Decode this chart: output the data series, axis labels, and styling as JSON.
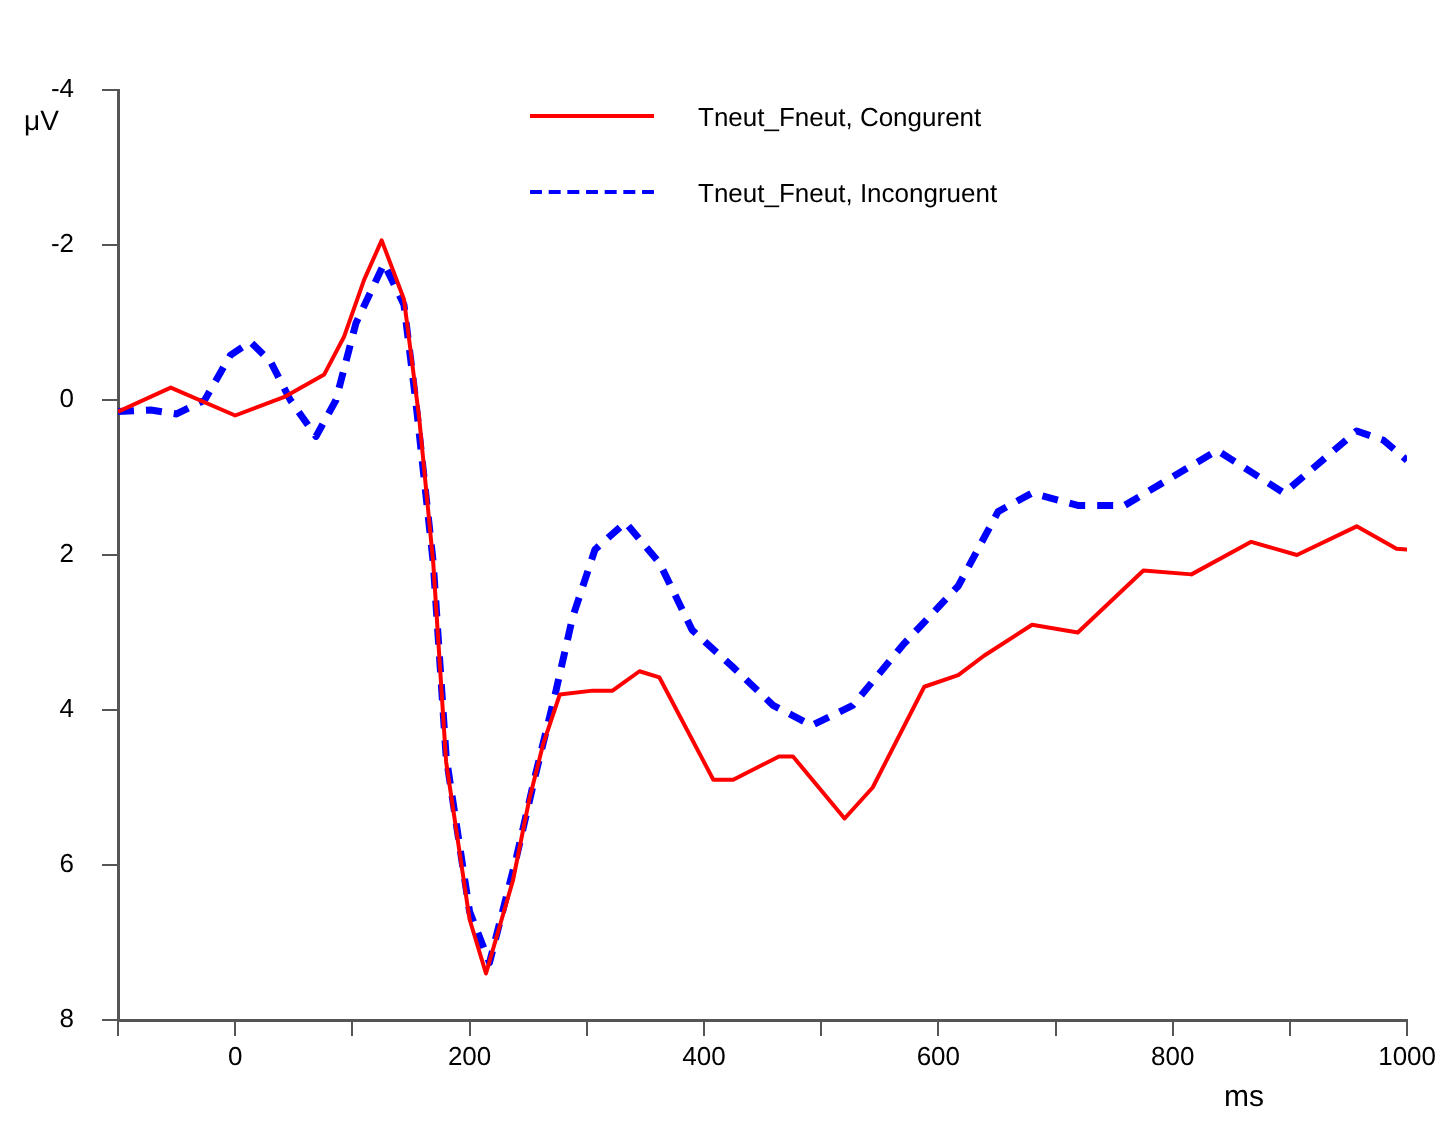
{
  "chart_data": {
    "type": "line",
    "xlabel": "ms",
    "ylabel": "μV",
    "xlim": [
      -100,
      1000
    ],
    "xticks": [
      {
        "value": -100,
        "label": null
      },
      0,
      {
        "value": 100,
        "label": null
      },
      200,
      {
        "value": 300,
        "label": null
      },
      400,
      {
        "value": 500,
        "label": null
      },
      600,
      {
        "value": 700,
        "label": null
      },
      800,
      {
        "value": 900,
        "label": null
      },
      1000
    ],
    "ylim": [
      8,
      -4
    ],
    "yticks": [
      -4,
      -2,
      0,
      2,
      4,
      6,
      8
    ],
    "grid": false,
    "legend": "top",
    "series": [
      {
        "name": "Tneut_Fneut, Congurent",
        "color": "#ff0000",
        "line_style": "solid",
        "x": [
          -100,
          -55,
          0,
          42,
          76,
          93,
          110,
          125,
          144,
          157,
          169,
          180,
          200,
          214,
          237,
          251,
          263,
          277,
          305,
          322,
          345,
          362,
          408,
          425,
          464,
          476,
          520,
          544,
          588,
          617,
          639,
          680,
          719,
          775,
          816,
          867,
          906,
          957,
          991,
          1000
        ],
        "values": [
          0.15,
          -0.16,
          0.2,
          -0.04,
          -0.33,
          -0.82,
          -1.55,
          -2.06,
          -1.3,
          0.23,
          2.1,
          4.67,
          6.7,
          7.4,
          6.2,
          5.15,
          4.43,
          3.8,
          3.75,
          3.75,
          3.5,
          3.58,
          4.9,
          4.9,
          4.6,
          4.6,
          5.4,
          5.0,
          3.7,
          3.55,
          3.3,
          2.9,
          3.0,
          2.2,
          2.25,
          1.83,
          2.0,
          1.63,
          1.92,
          1.93
        ]
      },
      {
        "name": "Tneut_Fneut, Incongruent",
        "color": "#0000ff",
        "line_style": "dashed",
        "x": [
          -100,
          -72,
          -50,
          -26,
          -4,
          13,
          30,
          47,
          69,
          86,
          103,
          127,
          144,
          154,
          169,
          180,
          200,
          217,
          240,
          256,
          273,
          288,
          307,
          333,
          362,
          390,
          425,
          459,
          492,
          527,
          571,
          617,
          651,
          680,
          719,
          759,
          799,
          838,
          895,
          957,
          980,
          1000
        ],
        "values": [
          0.15,
          0.13,
          0.18,
          0,
          -0.58,
          -0.75,
          -0.5,
          0,
          0.47,
          0,
          -0.99,
          -1.76,
          -1.23,
          0,
          2.1,
          4.6,
          6.6,
          7.26,
          5.9,
          4.85,
          3.8,
          2.8,
          1.93,
          1.58,
          2.1,
          2.97,
          3.45,
          3.94,
          4.2,
          3.94,
          3.14,
          2.4,
          1.44,
          1.2,
          1.36,
          1.36,
          1.0,
          0.65,
          1.2,
          0.4,
          0.52,
          0.78
        ]
      }
    ]
  }
}
